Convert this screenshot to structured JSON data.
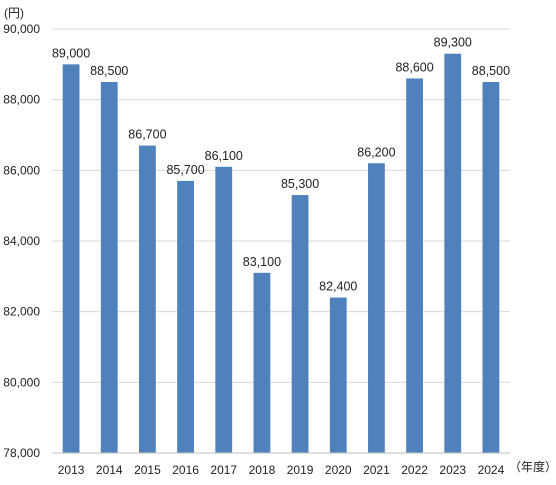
{
  "chart_data": {
    "type": "bar",
    "title": "",
    "xlabel": "",
    "ylabel": "",
    "y_unit_label": "(円)",
    "x_unit_label": "（年度）",
    "categories": [
      "2013",
      "2014",
      "2015",
      "2016",
      "2017",
      "2018",
      "2019",
      "2020",
      "2021",
      "2022",
      "2023",
      "2024"
    ],
    "values": [
      89000,
      88500,
      86700,
      85700,
      86100,
      83100,
      85300,
      82400,
      86200,
      88600,
      89300,
      88500
    ],
    "data_labels": [
      "89,000",
      "88,500",
      "86,700",
      "85,700",
      "86,100",
      "83,100",
      "85,300",
      "82,400",
      "86,200",
      "88,600",
      "89,300",
      "88,500"
    ],
    "ylim": [
      78000,
      90000
    ],
    "yticks": [
      78000,
      80000,
      82000,
      84000,
      86000,
      88000,
      90000
    ],
    "ytick_labels": [
      "78,000",
      "80,000",
      "82,000",
      "84,000",
      "86,000",
      "88,000",
      "90,000"
    ],
    "grid": true,
    "legend": "none",
    "bar_color": "#4f81bd",
    "grid_color": "#d9d9d9"
  }
}
